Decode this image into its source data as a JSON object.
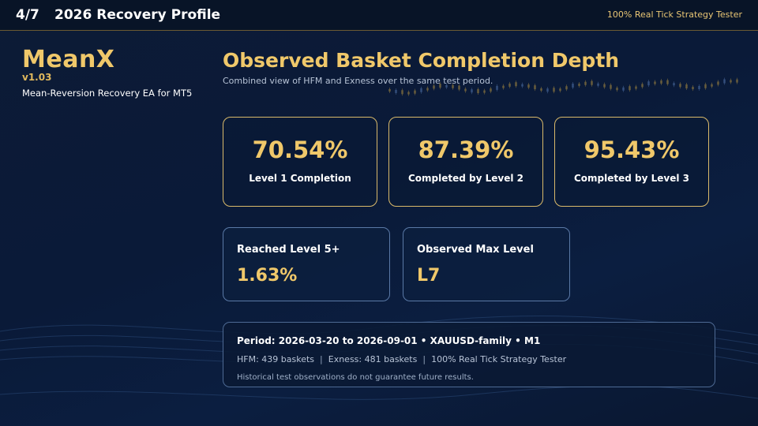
{
  "header": {
    "page_indicator": "4/7",
    "title": "2026 Recovery Profile",
    "tag": "100% Real Tick Strategy Tester"
  },
  "brand": {
    "name": "MeanX",
    "version": "v1.03",
    "description": "Mean-Reversion Recovery EA for MT5"
  },
  "main": {
    "title": "Observed Basket Completion Depth",
    "subtitle": "Combined view of HFM and Exness over the same test period."
  },
  "stats_primary": [
    {
      "value": "70.54%",
      "label": "Level 1 Completion"
    },
    {
      "value": "87.39%",
      "label": "Completed by Level 2"
    },
    {
      "value": "95.43%",
      "label": "Completed by Level 3"
    }
  ],
  "stats_secondary": [
    {
      "label": "Reached Level 5+",
      "value": "1.63%"
    },
    {
      "label": "Observed Max Level",
      "value": "L7"
    }
  ],
  "info": {
    "period": "Period: 2026-03-20 to 2026-09-01 • XAUUSD-family • M1",
    "hfm": "HFM: 439 baskets",
    "exness": "Exness: 481 baskets",
    "tester": "100% Real Tick Strategy Tester",
    "separator": "|",
    "disclaimer": "Historical test observations do not guarantee future results."
  },
  "colors": {
    "accent_gold": "#f0c86a",
    "background_navy": "#0a1a38"
  }
}
